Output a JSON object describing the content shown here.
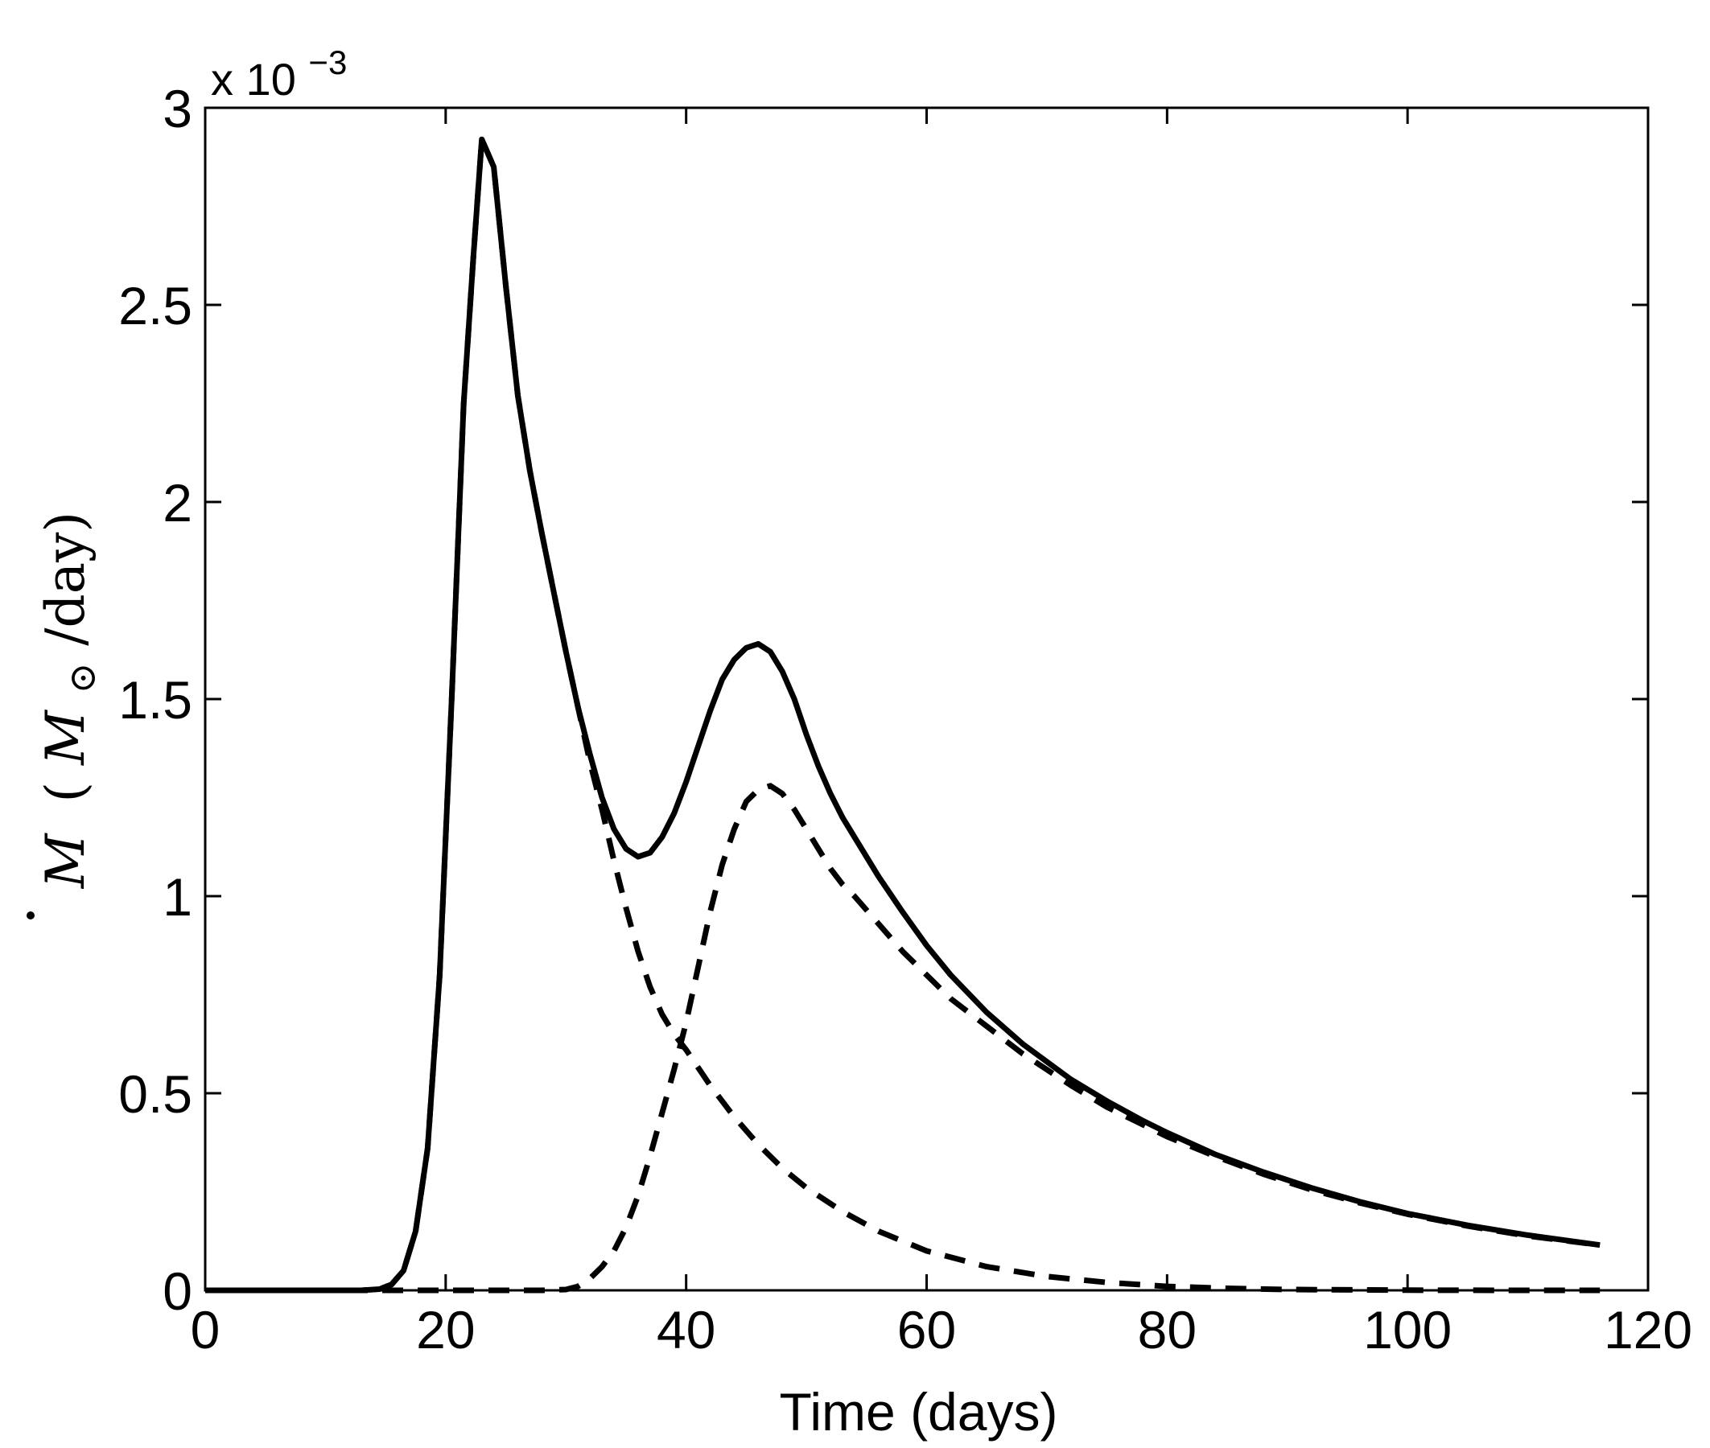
{
  "chart_data": {
    "type": "line",
    "title": "",
    "xlabel": "Time (days)",
    "ylabel": {
      "symbol": "M",
      "open": "(",
      "unit_symbol": "M",
      "unit_subscript": "⊙",
      "unit_rest": "/day)"
    },
    "y_multiplier": {
      "base": "x 10",
      "exponent": "−3"
    },
    "xlim": [
      0,
      120
    ],
    "ylim": [
      0,
      3
    ],
    "x_ticks": [
      0,
      20,
      40,
      60,
      80,
      100,
      120
    ],
    "x_tick_labels": [
      "0",
      "20",
      "40",
      "60",
      "80",
      "100",
      "120"
    ],
    "y_ticks": [
      0,
      0.5,
      1,
      1.5,
      2,
      2.5,
      3
    ],
    "y_tick_labels": [
      "0",
      "0.5",
      "1",
      "1.5",
      "2",
      "2.5",
      "3"
    ],
    "grid": false,
    "legend": "none",
    "series": [
      {
        "style": "solid",
        "color": "#000000",
        "x": [
          0,
          10,
          13,
          14.5,
          15.5,
          16.5,
          17.5,
          18.5,
          19.5,
          20.5,
          21.5,
          22.3,
          23,
          24,
          25,
          26,
          27,
          28,
          29,
          30,
          31,
          32,
          33,
          34,
          35,
          36,
          37,
          38,
          39,
          40,
          41,
          42,
          43,
          44,
          45,
          46,
          47,
          48,
          49,
          50,
          51,
          52,
          53,
          54,
          56,
          58,
          60,
          62,
          65,
          68,
          70,
          72,
          75,
          78,
          80,
          84,
          88,
          92,
          96,
          100,
          105,
          110,
          116
        ],
        "y": [
          0,
          0,
          0,
          0.003,
          0.015,
          0.05,
          0.15,
          0.36,
          0.8,
          1.5,
          2.25,
          2.62,
          2.92,
          2.85,
          2.55,
          2.27,
          2.08,
          1.92,
          1.77,
          1.62,
          1.48,
          1.36,
          1.25,
          1.17,
          1.12,
          1.1,
          1.11,
          1.15,
          1.21,
          1.29,
          1.38,
          1.47,
          1.55,
          1.6,
          1.63,
          1.64,
          1.62,
          1.57,
          1.5,
          1.41,
          1.33,
          1.26,
          1.2,
          1.15,
          1.05,
          0.96,
          0.875,
          0.8,
          0.705,
          0.625,
          0.58,
          0.535,
          0.48,
          0.43,
          0.4,
          0.345,
          0.3,
          0.26,
          0.225,
          0.195,
          0.165,
          0.14,
          0.115
        ]
      },
      {
        "style": "dashed",
        "color": "#000000",
        "x": [
          0,
          10,
          13,
          14.5,
          15.5,
          16.5,
          17.5,
          18.5,
          19.5,
          20.5,
          21.5,
          22.3,
          23,
          24,
          25,
          26,
          27,
          28,
          29,
          30,
          31,
          32,
          33,
          34,
          35,
          36,
          37,
          38,
          39,
          40,
          42,
          44,
          46,
          48,
          50,
          53,
          56,
          60,
          65,
          70,
          75,
          80,
          85,
          90,
          100,
          110,
          116
        ],
        "y": [
          0,
          0,
          0,
          0.003,
          0.015,
          0.05,
          0.15,
          0.36,
          0.8,
          1.5,
          2.25,
          2.62,
          2.92,
          2.85,
          2.55,
          2.27,
          2.08,
          1.92,
          1.77,
          1.62,
          1.48,
          1.34,
          1.22,
          1.09,
          0.97,
          0.86,
          0.77,
          0.7,
          0.65,
          0.61,
          0.52,
          0.44,
          0.37,
          0.31,
          0.26,
          0.2,
          0.15,
          0.1,
          0.06,
          0.035,
          0.02,
          0.01,
          0.005,
          0.002,
          0.0005,
          0,
          0
        ]
      },
      {
        "style": "dashed",
        "color": "#000000",
        "x": [
          0,
          28,
          30,
          31,
          32,
          33,
          34,
          35,
          36,
          37,
          38,
          39,
          40,
          41,
          42,
          43,
          44,
          45,
          46,
          47,
          48,
          49,
          50,
          51,
          52,
          53,
          54,
          56,
          58,
          60,
          62,
          65,
          68,
          70,
          72,
          75,
          78,
          80,
          84,
          88,
          92,
          96,
          100,
          105,
          110,
          116
        ],
        "y": [
          0,
          0,
          0.002,
          0.01,
          0.03,
          0.06,
          0.1,
          0.16,
          0.24,
          0.34,
          0.45,
          0.56,
          0.68,
          0.82,
          0.96,
          1.08,
          1.17,
          1.24,
          1.27,
          1.28,
          1.26,
          1.22,
          1.17,
          1.12,
          1.07,
          1.03,
          1.0,
          0.93,
          0.86,
          0.8,
          0.74,
          0.67,
          0.6,
          0.56,
          0.52,
          0.465,
          0.42,
          0.39,
          0.34,
          0.295,
          0.255,
          0.222,
          0.193,
          0.163,
          0.138,
          0.115
        ]
      }
    ]
  }
}
